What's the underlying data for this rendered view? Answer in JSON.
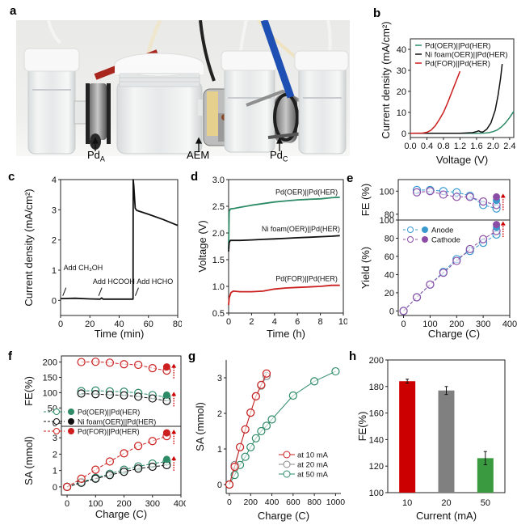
{
  "figure": {
    "panel_letters": [
      "a",
      "b",
      "c",
      "d",
      "e",
      "f",
      "g",
      "h"
    ],
    "photo": {
      "labels": [
        {
          "main": "Pd",
          "sub": "A"
        },
        {
          "main": "AEM",
          "sub": ""
        },
        {
          "main": "Pd",
          "sub": "C"
        }
      ]
    }
  },
  "colors": {
    "green": "#2e8b68",
    "black": "#111111",
    "red": "#cc1f1f",
    "anode": "#3a9ad0",
    "cathode": "#8b4ea6",
    "grey": "#888888",
    "bar_red": "#cc0000",
    "bar_grey": "#808080",
    "bar_green": "#3a9a40"
  },
  "chart_data": [
    {
      "id": "b",
      "type": "line",
      "xlabel": "Voltage (V)",
      "ylabel": "Current density (mA/cm²)",
      "xlim": [
        0,
        2.5
      ],
      "ylim": [
        -2,
        45
      ],
      "xticks": [
        "0.0",
        "0.4",
        "0.8",
        "1.2",
        "1.6",
        "2.0",
        "2.4"
      ],
      "xtick_values": [
        0,
        0.4,
        0.8,
        1.2,
        1.6,
        2.0,
        2.4
      ],
      "yticks": [
        "0",
        "10",
        "20",
        "30",
        "40"
      ],
      "ytick_values": [
        0,
        10,
        20,
        30,
        40
      ],
      "legend_position": "top-left",
      "series": [
        {
          "name": "Pd(OER)||Pd(HER)",
          "color": "green",
          "x": [
            0,
            1.6,
            1.8,
            1.9,
            2.0,
            2.1,
            2.2,
            2.3,
            2.4,
            2.5
          ],
          "y": [
            0,
            0,
            0.1,
            0.3,
            0.8,
            1.6,
            3,
            5,
            7.5,
            10.5
          ]
        },
        {
          "name": "Ni foam(OER)||Pd(HER)",
          "color": "black",
          "x": [
            0,
            1.2,
            1.5,
            1.6,
            1.65,
            1.7,
            1.75,
            1.85,
            1.95,
            2.05,
            2.12,
            2.18,
            2.22
          ],
          "y": [
            0,
            0,
            0.3,
            0.8,
            1.2,
            0.7,
            0.6,
            2,
            5,
            11,
            18,
            26,
            33
          ]
        },
        {
          "name": "Pd(FOR)||Pd(HER)",
          "color": "red",
          "x": [
            0,
            0.3,
            0.4,
            0.5,
            0.6,
            0.7,
            0.8,
            0.9,
            1.0,
            1.1,
            1.2
          ],
          "y": [
            0,
            0.1,
            0.5,
            1.5,
            3.5,
            6.5,
            10,
            14.5,
            19.5,
            24.5,
            29.5
          ]
        }
      ]
    },
    {
      "id": "c",
      "type": "line",
      "xlabel": "Time (min)",
      "ylabel": "Current density (mA/cm²)",
      "xlim": [
        0,
        80
      ],
      "ylim": [
        -0.5,
        4
      ],
      "xticks": [
        "0",
        "20",
        "40",
        "60",
        "80"
      ],
      "xtick_values": [
        0,
        20,
        40,
        60,
        80
      ],
      "yticks": [
        "0",
        "1",
        "2",
        "3",
        "4"
      ],
      "ytick_values": [
        0,
        1,
        2,
        3,
        4
      ],
      "series": [
        {
          "name": "current",
          "color": "black",
          "x": [
            0,
            10,
            20,
            27,
            28,
            29,
            40,
            49.5,
            49.6,
            50,
            51,
            52,
            60,
            70,
            80
          ],
          "y": [
            0.06,
            0.07,
            0.05,
            0.04,
            0.08,
            0.04,
            0.04,
            0.04,
            4.0,
            3.8,
            3.05,
            2.98,
            2.85,
            2.68,
            2.48
          ]
        }
      ],
      "annotations": [
        {
          "text": "Add CH₃OH",
          "x": 2,
          "y": 1.0,
          "arrow_x": 1.5,
          "arrow_y": 0.15
        },
        {
          "text": "Add HCOOH",
          "x": 22,
          "y": 0.55,
          "arrow_x": 26,
          "arrow_y": 0.15
        },
        {
          "text": "Add HCHO",
          "x": 52,
          "y": 0.55,
          "arrow_x": 51,
          "arrow_y": 0.15
        }
      ]
    },
    {
      "id": "d",
      "type": "line",
      "xlabel": "Time (h)",
      "ylabel": "Voltage (V)",
      "xlim": [
        0,
        10
      ],
      "ylim": [
        0.5,
        3.0
      ],
      "xticks": [
        "0",
        "2",
        "4",
        "6",
        "8",
        "10"
      ],
      "xtick_values": [
        0,
        2,
        4,
        6,
        8,
        10
      ],
      "yticks": [
        "0.5",
        "1.0",
        "1.5",
        "2.0",
        "2.5",
        "3.0"
      ],
      "ytick_values": [
        0.5,
        1.0,
        1.5,
        2.0,
        2.5,
        3.0
      ],
      "series": [
        {
          "name": "Pd(OER)||Pd(HER)",
          "color": "green",
          "x": [
            0,
            0.05,
            0.15,
            0.5,
            1,
            2,
            3,
            4,
            5,
            6,
            7,
            8,
            9,
            9.7
          ],
          "y": [
            1.7,
            2.4,
            2.45,
            2.46,
            2.48,
            2.52,
            2.55,
            2.58,
            2.6,
            2.62,
            2.63,
            2.64,
            2.66,
            2.67
          ],
          "label_x": 6.8,
          "label_y": 2.72
        },
        {
          "name": "Ni foam(OER)||Pd(HER)",
          "color": "black",
          "x": [
            0,
            0.05,
            0.15,
            0.5,
            1,
            2,
            3,
            4,
            5,
            6,
            7,
            8,
            9,
            9.7
          ],
          "y": [
            1.65,
            1.82,
            1.86,
            1.86,
            1.86,
            1.87,
            1.88,
            1.89,
            1.9,
            1.91,
            1.92,
            1.93,
            1.94,
            1.95
          ],
          "label_x": 6.3,
          "label_y": 2.03
        },
        {
          "name": "Pd(FOR)||Pd(HER)",
          "color": "red",
          "x": [
            0,
            0.05,
            0.2,
            0.4,
            1,
            2,
            3,
            4,
            5,
            6,
            7,
            8,
            9,
            9.7
          ],
          "y": [
            0.65,
            0.78,
            0.88,
            0.91,
            0.9,
            0.9,
            0.91,
            0.95,
            0.97,
            0.98,
            0.99,
            1.0,
            1.02,
            1.02
          ],
          "label_x": 6.8,
          "label_y": 1.1
        }
      ]
    },
    {
      "id": "e",
      "type": "scatter",
      "xlabel": "Charge (C)",
      "xlim": [
        -20,
        400
      ],
      "xticks": [
        "0",
        "100",
        "200",
        "300",
        "400"
      ],
      "xtick_values": [
        0,
        100,
        200,
        300,
        400
      ],
      "top": {
        "ylabel": "FE (%)",
        "ylim": [
          75,
          110
        ],
        "yticks": [
          "80",
          "100"
        ],
        "ytick_values": [
          80,
          100
        ],
        "series": [
          {
            "name": "Anode",
            "color": "anode",
            "x": [
              50,
              100,
              150,
              200,
              250,
              300,
              350
            ],
            "y": [
              101,
              101,
              100,
              99,
              96,
              88,
              85
            ]
          },
          {
            "name": "Cathode",
            "color": "cathode",
            "x": [
              50,
              100,
              150,
              200,
              250,
              300,
              350
            ],
            "y": [
              99,
              100,
              97,
              95,
              95,
              91,
              88
            ]
          }
        ],
        "filled": [
          {
            "series": "Anode",
            "x": 350,
            "y": 92
          },
          {
            "series": "Cathode",
            "x": 350,
            "y": 95
          }
        ]
      },
      "bottom": {
        "ylabel": "Yield (%)",
        "ylim": [
          -5,
          100
        ],
        "yticks": [
          "0",
          "20",
          "40",
          "60",
          "80",
          "100"
        ],
        "ytick_values": [
          0,
          20,
          40,
          60,
          80,
          100
        ],
        "series": [
          {
            "name": "Anode",
            "color": "anode",
            "x": [
              0,
              50,
              100,
              150,
              200,
              250,
              300,
              350
            ],
            "y": [
              0,
              15,
              29,
              43,
              57,
              66,
              75,
              84
            ]
          },
          {
            "name": "Cathode",
            "color": "cathode",
            "x": [
              0,
              50,
              100,
              150,
              200,
              250,
              300,
              350
            ],
            "y": [
              0,
              15,
              29,
              42,
              55,
              68,
              79,
              88
            ]
          }
        ],
        "filled": [
          {
            "series": "Anode",
            "x": 350,
            "y": 92
          },
          {
            "series": "Cathode",
            "x": 350,
            "y": 95
          }
        ]
      },
      "legend": [
        {
          "label": "Anode",
          "color": "anode"
        },
        {
          "label": "Cathode",
          "color": "cathode"
        }
      ]
    },
    {
      "id": "f",
      "type": "scatter",
      "xlabel": "Charge (C)",
      "xlim": [
        -20,
        400
      ],
      "xticks": [
        "0",
        "100",
        "200",
        "300",
        "400"
      ],
      "xtick_values": [
        0,
        100,
        200,
        300,
        400
      ],
      "top": {
        "ylabel": "FE(%)",
        "ylim": [
          -10,
          220
        ],
        "yticks": [
          "0",
          "50",
          "100",
          "150",
          "200"
        ],
        "ytick_values": [
          0,
          50,
          100,
          150,
          200
        ],
        "series": [
          {
            "name": "Pd(OER)||Pd(HER)",
            "color": "green",
            "x": [
              50,
              100,
              150,
              200,
              250,
              300,
              350
            ],
            "y": [
              105,
              107,
              104,
              103,
              99,
              92,
              85
            ]
          },
          {
            "name": "Ni foam(OER)||Pd(HER)",
            "color": "black",
            "x": [
              50,
              100,
              150,
              200,
              250,
              300,
              350
            ],
            "y": [
              97,
              95,
              93,
              91,
              87,
              81,
              73
            ]
          },
          {
            "name": "Pd(FOR)||Pd(HER)",
            "color": "red",
            "x": [
              50,
              100,
              150,
              200,
              250,
              300,
              350
            ],
            "y": [
              200,
              201,
              198,
              193,
              191,
              180,
              172
            ]
          }
        ],
        "filled": [
          {
            "series": "Pd(OER)||Pd(HER)",
            "x": 350,
            "y": 92
          },
          {
            "series": "Pd(FOR)||Pd(HER)",
            "x": 350,
            "y": 184
          }
        ]
      },
      "bottom": {
        "ylabel": "SA (mmol)",
        "ylim": [
          -0.5,
          3.7
        ],
        "yticks": [
          "0",
          "1",
          "2",
          "3"
        ],
        "ytick_values": [
          0,
          1,
          2,
          3
        ],
        "series": [
          {
            "name": "Pd(OER)||Pd(HER)",
            "color": "green",
            "x": [
              0,
              50,
              100,
              150,
              200,
              250,
              300,
              350
            ],
            "y": [
              0,
              0.3,
              0.55,
              0.8,
              1.05,
              1.25,
              1.42,
              1.55
            ]
          },
          {
            "name": "Ni foam(OER)||Pd(HER)",
            "color": "black",
            "x": [
              0,
              50,
              100,
              150,
              200,
              250,
              300,
              350
            ],
            "y": [
              0,
              0.25,
              0.5,
              0.72,
              0.92,
              1.12,
              1.23,
              1.33
            ]
          },
          {
            "name": "Pd(FOR)||Pd(HER)",
            "color": "red",
            "x": [
              0,
              50,
              100,
              150,
              200,
              250,
              300,
              350
            ],
            "y": [
              0,
              0.5,
              1.05,
              1.55,
              2.05,
              2.5,
              2.8,
              3.1
            ]
          }
        ],
        "filled": [
          {
            "series": "Pd(OER)||Pd(HER)",
            "x": 350,
            "y": 1.68
          },
          {
            "series": "Pd(FOR)||Pd(HER)",
            "x": 350,
            "y": 3.3
          }
        ]
      },
      "legend": [
        {
          "label": "Pd(OER)||Pd(HER)",
          "color": "green"
        },
        {
          "label": "Ni foam(OER)||Pd(HER)",
          "color": "black"
        },
        {
          "label": "Pd(FOR)||Pd(HER)",
          "color": "red"
        }
      ]
    },
    {
      "id": "g",
      "type": "scatter",
      "xlabel": "Charge (C)",
      "ylabel": "SA (mmol)",
      "xlim": [
        -30,
        1050
      ],
      "ylim": [
        -0.25,
        3.5
      ],
      "xticks": [
        "0",
        "200",
        "400",
        "600",
        "800",
        "1000"
      ],
      "xtick_values": [
        0,
        200,
        400,
        600,
        800,
        1000
      ],
      "yticks": [
        "0",
        "1",
        "2",
        "3"
      ],
      "ytick_values": [
        0,
        1,
        2,
        3
      ],
      "legend_position": "bottom-right",
      "series": [
        {
          "name": "at 10 mA",
          "color": "red",
          "x": [
            0,
            50,
            100,
            150,
            200,
            250,
            300,
            350
          ],
          "y": [
            0,
            0.5,
            1.05,
            1.55,
            2.02,
            2.48,
            2.8,
            3.12
          ]
        },
        {
          "name": "at 20 mA",
          "color": "grey",
          "x": [
            0,
            50,
            100,
            150,
            200,
            250,
            300,
            350
          ],
          "y": [
            0,
            0.55,
            1.05,
            1.55,
            2.02,
            2.48,
            2.78,
            3.05
          ]
        },
        {
          "name": "at 50 mA",
          "color": "green",
          "x": [
            0,
            50,
            100,
            150,
            200,
            250,
            300,
            350,
            400,
            600,
            800,
            1000
          ],
          "y": [
            0,
            0.27,
            0.55,
            0.78,
            1.05,
            1.3,
            1.5,
            1.65,
            1.83,
            2.5,
            2.9,
            3.18
          ]
        }
      ]
    },
    {
      "id": "h",
      "type": "bar",
      "xlabel": "Current (mA)",
      "ylabel": "FE(%)",
      "ylim": [
        100,
        200
      ],
      "categories": [
        "10",
        "20",
        "50"
      ],
      "values": [
        184,
        177,
        126
      ],
      "errors": [
        1.5,
        3,
        5
      ],
      "bar_colors": [
        "bar_red",
        "bar_grey",
        "bar_green"
      ],
      "yticks": [
        "100",
        "120",
        "140",
        "160",
        "180",
        "200"
      ],
      "ytick_values": [
        100,
        120,
        140,
        160,
        180,
        200
      ]
    }
  ]
}
